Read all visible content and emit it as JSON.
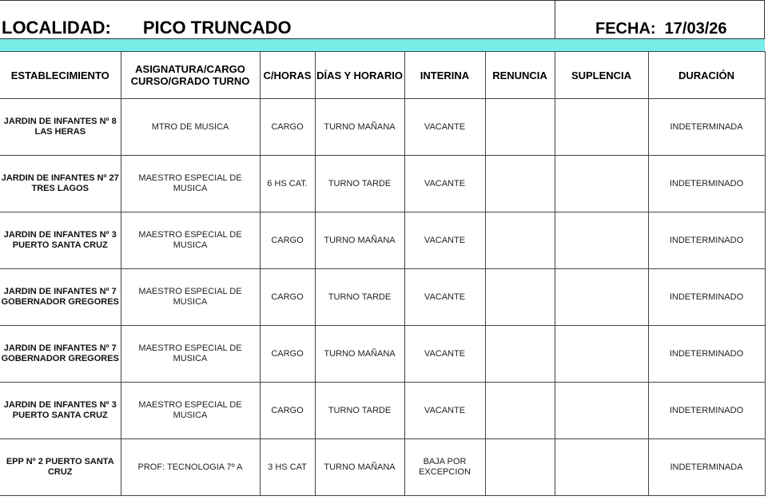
{
  "header": {
    "localidad_label": "LOCALIDAD:",
    "localidad_value": "PICO TRUNCADO",
    "fecha_label": "FECHA:",
    "fecha_value": "17/03/26",
    "band_color": "#77ece6"
  },
  "table": {
    "columns": [
      "ESTABLECIMIENTO",
      "ASIGNATURA/CARGO CURSO/GRADO TURNO",
      "C/HORAS",
      "DÍAS Y HORARIO",
      "INTERINA",
      "RENUNCIA",
      "SUPLENCIA",
      "DURACIÓN"
    ],
    "rows": [
      [
        "JARDIN  DE INFANTES Nº 8 LAS HERAS",
        "MTRO DE MUSICA",
        "CARGO",
        "TURNO MAÑANA",
        "VACANTE",
        "",
        "",
        "INDETERMINADA"
      ],
      [
        "JARDIN DE INFANTES Nº 27 TRES LAGOS",
        "MAESTRO ESPECIAL DE MUSICA",
        "6 HS CAT.",
        "TURNO TARDE",
        "VACANTE",
        "",
        "",
        "INDETERMINADO"
      ],
      [
        "JARDIN DE INFANTES Nº 3 PUERTO SANTA CRUZ",
        "MAESTRO ESPECIAL DE MUSICA",
        "CARGO",
        "TURNO MAÑANA",
        "VACANTE",
        "",
        "",
        "INDETERMINADO"
      ],
      [
        "JARDIN DE INFANTES Nº 7 GOBERNADOR GREGORES",
        "MAESTRO ESPECIAL DE MUSICA",
        "CARGO",
        "TURNO  TARDE",
        "VACANTE",
        "",
        "",
        "INDETERMINADO"
      ],
      [
        "JARDIN DE INFANTES Nº 7 GOBERNADOR GREGORES",
        "MAESTRO ESPECIAL DE MUSICA",
        "CARGO",
        "TURNO MAÑANA",
        "VACANTE",
        "",
        "",
        "INDETERMINADO"
      ],
      [
        "JARDIN DE INFANTES Nº 3 PUERTO SANTA CRUZ",
        "MAESTRO ESPECIAL DE MUSICA",
        "CARGO",
        "TURNO TARDE",
        "VACANTE",
        "",
        "",
        "INDETERMINADO"
      ],
      [
        "EPP Nº 2 PUERTO SANTA CRUZ",
        "PROF: TECNOLOGIA  7º A",
        "3 HS CAT",
        "TURNO MAÑANA",
        "BAJA POR EXCEPCION",
        "",
        "",
        "INDETERMINADA"
      ]
    ]
  }
}
